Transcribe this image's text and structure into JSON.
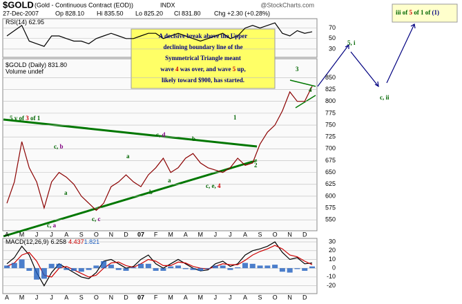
{
  "header": {
    "symbol": "$GOLD",
    "name": "(Gold - Continuous Contract (EOD))",
    "exchange": "INDX",
    "source": "@StockCharts.com",
    "date": "27-Dec-2007",
    "open": "Op 828.10",
    "high": "Hi 835.50",
    "low": "Lo 825.20",
    "close": "Cl 831.80",
    "change": "Chg +2.30 (+0.28%)"
  },
  "note": {
    "lines": [
      [
        {
          "text": "A decisive break above the Upper",
          "color": "#000080"
        }
      ],
      [
        {
          "text": "declining boundary line of the",
          "color": "#000080"
        }
      ],
      [
        {
          "text": "Symmetrical Triangle meant",
          "color": "#000080"
        }
      ],
      [
        {
          "text": "wave ",
          "color": "#000080"
        },
        {
          "text": "4",
          "color": "#cc0000"
        },
        {
          "text": " was over, and wave ",
          "color": "#000080"
        },
        {
          "text": "5",
          "color": "#cc0000"
        },
        {
          "text": " up,",
          "color": "#000080"
        }
      ],
      [
        {
          "text": "likely toward $900, has started.",
          "color": "#000080"
        }
      ]
    ]
  },
  "forecast": [
    {
      "parts": [
        {
          "text": "5, i",
          "color": "#006600"
        }
      ]
    },
    {
      "parts": [
        {
          "text": "c, ii",
          "color": "#006600"
        }
      ]
    },
    {
      "parts": [
        {
          "text": "iii of ",
          "color": "#006600"
        },
        {
          "text": "5",
          "color": "#cc0000"
        },
        {
          "text": " of ",
          "color": "#006600"
        },
        {
          "text": "1",
          "color": "#006600"
        },
        {
          "text": " of ",
          "color": "#006600"
        },
        {
          "text": "(1)",
          "color": "#000080"
        }
      ]
    }
  ],
  "chart_data": [
    {
      "type": "line",
      "label": "$GOLD (Daily) 831.80",
      "sublabel": "Volume undef",
      "categories": [
        "A",
        null,
        "M",
        null,
        "J",
        null,
        "J",
        null,
        "A",
        null,
        "S",
        null,
        "O",
        null,
        "N",
        null,
        "D",
        null,
        "07",
        null,
        "F",
        null,
        "M",
        null,
        "A",
        null,
        "M",
        null,
        "J",
        null,
        "J",
        null,
        "A",
        null,
        "S",
        null,
        "O",
        null,
        "N",
        null,
        "D",
        null
      ],
      "values": [
        585,
        630,
        715,
        660,
        630,
        575,
        630,
        650,
        640,
        625,
        600,
        585,
        570,
        585,
        620,
        630,
        645,
        630,
        620,
        645,
        660,
        680,
        650,
        660,
        680,
        690,
        670,
        660,
        655,
        650,
        660,
        680,
        665,
        670,
        710,
        735,
        750,
        780,
        820,
        800,
        800,
        832
      ],
      "color": "#8b0000",
      "ylim": [
        527,
        890
      ],
      "yticks": [
        550,
        575,
        600,
        625,
        650,
        675,
        700,
        725,
        750,
        775,
        800,
        825,
        850
      ],
      "grid": true,
      "annotations": [
        {
          "parts": [
            {
              "text": "5 v of ",
              "color": "#006600"
            },
            {
              "text": "3",
              "color": "#cc0000"
            },
            {
              "text": " of ",
              "color": "#006600"
            },
            {
              "text": "1",
              "color": "#006600"
            }
          ]
        },
        {
          "parts": [
            {
              "text": "c, ",
              "color": "#006600"
            },
            {
              "text": "b",
              "color": "#800080"
            }
          ]
        },
        {
          "parts": [
            {
              "text": "a",
              "color": "#006600"
            }
          ]
        },
        {
          "parts": [
            {
              "text": "c, ",
              "color": "#006600"
            },
            {
              "text": "a",
              "color": "#800080"
            }
          ]
        },
        {
          "parts": [
            {
              "text": "c, ",
              "color": "#006600"
            },
            {
              "text": "c",
              "color": "#800080"
            }
          ]
        },
        {
          "parts": [
            {
              "text": "a",
              "color": "#006600"
            }
          ]
        },
        {
          "parts": [
            {
              "text": "b",
              "color": "#006600"
            }
          ]
        },
        {
          "parts": [
            {
              "text": "c, ",
              "color": "#006600"
            },
            {
              "text": "d",
              "color": "#800080"
            }
          ]
        },
        {
          "parts": [
            {
              "text": "a",
              "color": "#006600"
            }
          ]
        },
        {
          "parts": [
            {
              "text": "b",
              "color": "#006600"
            }
          ]
        },
        {
          "parts": [
            {
              "text": "1",
              "color": "#006600"
            }
          ]
        },
        {
          "parts": [
            {
              "text": "c, e, ",
              "color": "#006600"
            },
            {
              "text": "4",
              "color": "#cc0000"
            }
          ]
        },
        {
          "parts": [
            {
              "text": "2",
              "color": "#006600"
            }
          ]
        },
        {
          "parts": [
            {
              "text": "3",
              "color": "#006600"
            }
          ]
        },
        {
          "parts": [
            {
              "text": "4",
              "color": "#006600"
            }
          ]
        }
      ]
    },
    {
      "type": "line",
      "label": "RSI(14) 62.95",
      "values": [
        55,
        65,
        75,
        45,
        40,
        35,
        55,
        55,
        50,
        45,
        45,
        40,
        50,
        55,
        60,
        55,
        50,
        50,
        55,
        60,
        60,
        50,
        55,
        60,
        55,
        50,
        45,
        50,
        55,
        60,
        50,
        55,
        70,
        75,
        70,
        75,
        80,
        60,
        55,
        65,
        60,
        63
      ],
      "color": "#000000",
      "ylim": [
        14,
        88
      ],
      "yticks": [
        30,
        50,
        70
      ],
      "grid": true
    },
    {
      "type": "line",
      "label": "MACD(12,26,9)",
      "categories": [
        "A",
        null,
        "M",
        null,
        "J",
        null,
        "J",
        null,
        "A",
        null,
        "S",
        null,
        "O",
        null,
        "N",
        null,
        "D",
        null,
        "07",
        null,
        "F",
        null,
        "M",
        null,
        "A",
        null,
        "M",
        null,
        "J",
        null,
        "J",
        null,
        "A",
        null,
        "S",
        null,
        "O",
        null,
        "N",
        null,
        "D",
        null
      ],
      "series": [
        {
          "name": "6.258",
          "color": "#000000",
          "values": [
            5,
            12,
            25,
            15,
            -5,
            -20,
            -5,
            5,
            0,
            -5,
            -10,
            -12,
            -5,
            8,
            10,
            5,
            0,
            2,
            10,
            15,
            5,
            0,
            5,
            10,
            5,
            0,
            -3,
            -2,
            5,
            8,
            2,
            5,
            15,
            20,
            22,
            25,
            30,
            18,
            10,
            12,
            5,
            6
          ]
        },
        {
          "name": "4.437",
          "color": "#cc0000",
          "values": [
            2,
            6,
            15,
            18,
            8,
            -8,
            -10,
            0,
            2,
            -2,
            -6,
            -10,
            -8,
            0,
            6,
            7,
            3,
            1,
            5,
            10,
            8,
            3,
            3,
            7,
            6,
            2,
            0,
            -1,
            2,
            5,
            4,
            4,
            9,
            15,
            19,
            22,
            26,
            22,
            15,
            13,
            8,
            4
          ]
        },
        {
          "name": "1.821",
          "color": "#1f5fbf",
          "type": "bar",
          "values": [
            3,
            6,
            10,
            -3,
            -13,
            -12,
            5,
            5,
            -2,
            -3,
            -4,
            -2,
            3,
            8,
            4,
            -2,
            -3,
            1,
            5,
            5,
            -3,
            -3,
            2,
            3,
            -1,
            -2,
            -3,
            -1,
            3,
            3,
            -2,
            1,
            6,
            5,
            3,
            3,
            4,
            -4,
            -5,
            -1,
            -3,
            2
          ]
        }
      ],
      "ylim": [
        -29,
        34
      ],
      "yticks": [
        -20,
        -10,
        0,
        10,
        20,
        30
      ],
      "grid": true
    }
  ]
}
